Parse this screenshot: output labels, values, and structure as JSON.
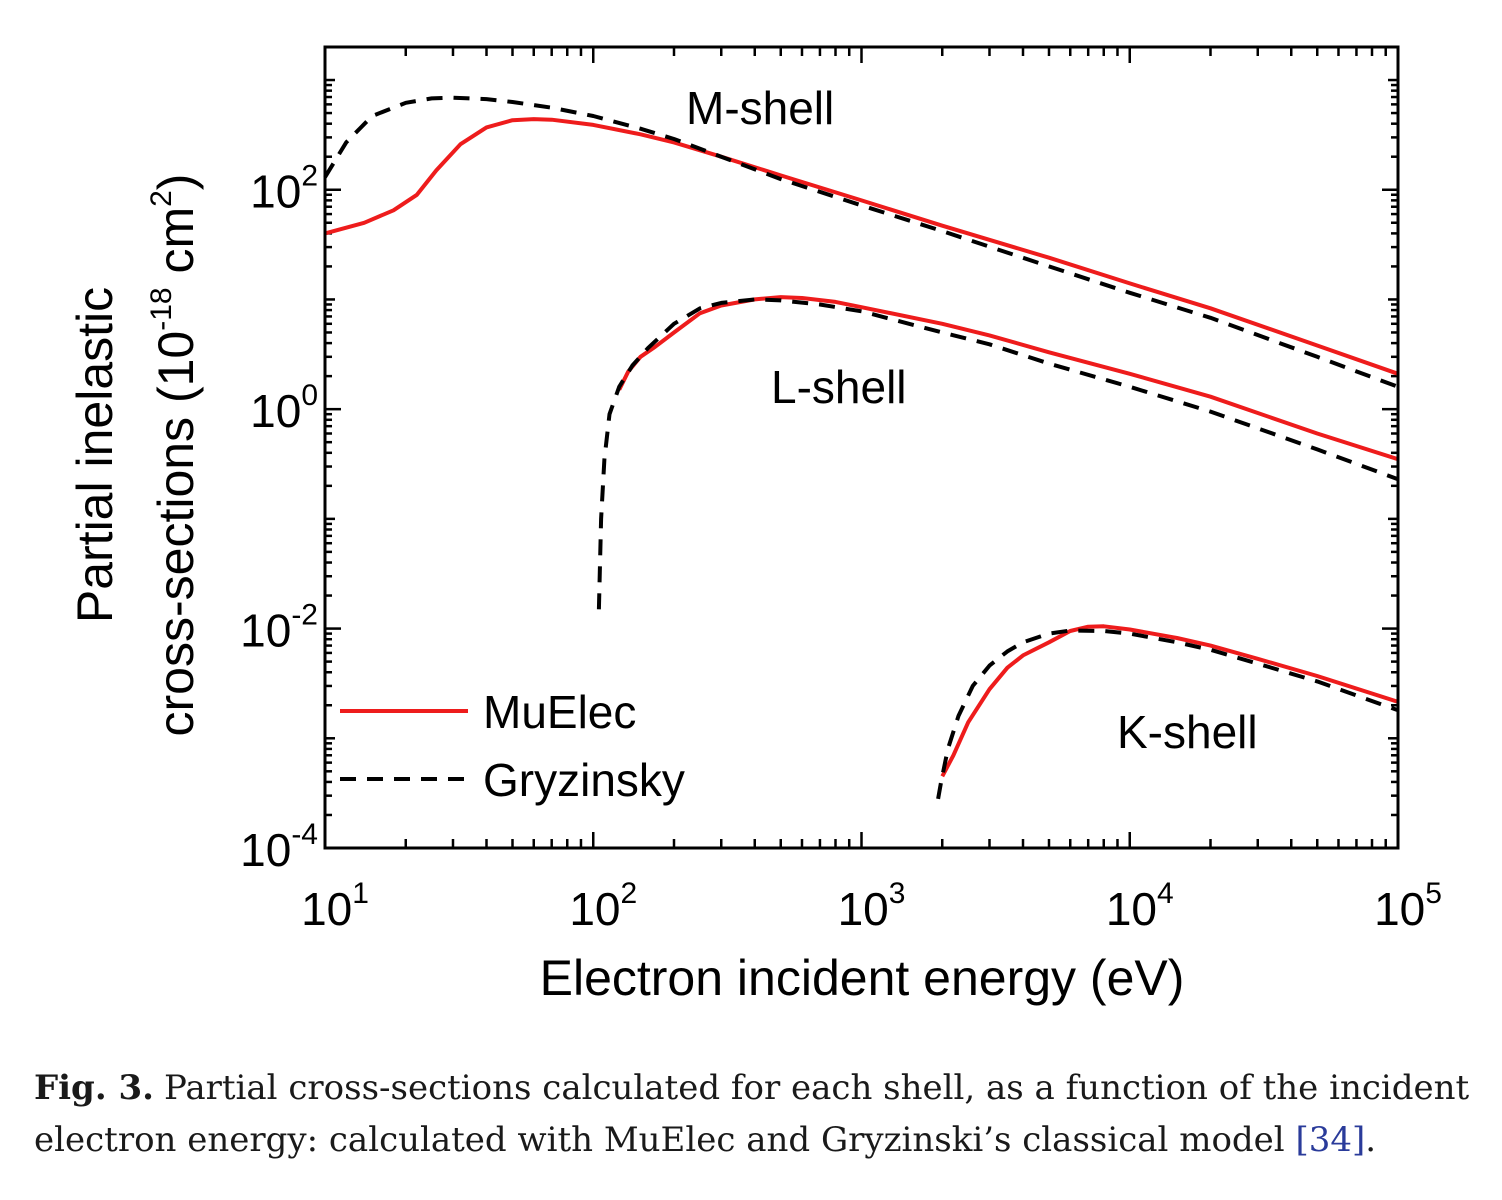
{
  "chart_data": {
    "type": "line",
    "xlabel": "Electron incident energy (eV)",
    "ylabel_line1": "Partial inelastic",
    "ylabel_line2": "cross-sections (10",
    "ylabel_exp": "-18",
    "ylabel_unit": " cm",
    "ylabel_unit_exp": "2",
    "ylabel_close": ")",
    "xscale": "log",
    "yscale": "log",
    "xlim": [
      10,
      100000
    ],
    "ylim": [
      0.0001,
      2000
    ],
    "x_ticks": [
      {
        "base": "10",
        "exp": "1"
      },
      {
        "base": "10",
        "exp": "2"
      },
      {
        "base": "10",
        "exp": "3"
      },
      {
        "base": "10",
        "exp": "4"
      },
      {
        "base": "10",
        "exp": "5"
      }
    ],
    "y_ticks": [
      {
        "base": "10",
        "exp": "-4"
      },
      {
        "base": "10",
        "exp": "-2"
      },
      {
        "base": "10",
        "exp": "0"
      },
      {
        "base": "10",
        "exp": "2"
      }
    ],
    "legend": {
      "position": "bottom-left",
      "entries": [
        "MuElec",
        "Gryzinsky"
      ]
    },
    "annotations": [
      "M-shell",
      "L-shell",
      "K-shell"
    ],
    "colors": {
      "MuElec": "#ee1c1c",
      "Gryzinsky": "#000000"
    },
    "series": [
      {
        "name": "MuElec",
        "shell": "M-shell",
        "style": "solid",
        "points": [
          [
            10,
            40
          ],
          [
            14,
            50
          ],
          [
            18,
            65
          ],
          [
            22,
            90
          ],
          [
            26,
            150
          ],
          [
            32,
            260
          ],
          [
            40,
            370
          ],
          [
            50,
            430
          ],
          [
            60,
            440
          ],
          [
            70,
            435
          ],
          [
            100,
            390
          ],
          [
            150,
            320
          ],
          [
            200,
            270
          ],
          [
            300,
            200
          ],
          [
            500,
            135
          ],
          [
            1000,
            80
          ],
          [
            2000,
            47
          ],
          [
            5000,
            24
          ],
          [
            10000,
            14
          ],
          [
            20000,
            8.3
          ],
          [
            50000,
            3.8
          ],
          [
            100000,
            2.1
          ]
        ]
      },
      {
        "name": "Gryzinsky",
        "shell": "M-shell",
        "style": "dashed",
        "points": [
          [
            10,
            130
          ],
          [
            12,
            270
          ],
          [
            15,
            470
          ],
          [
            20,
            620
          ],
          [
            25,
            680
          ],
          [
            30,
            690
          ],
          [
            40,
            670
          ],
          [
            50,
            630
          ],
          [
            70,
            560
          ],
          [
            100,
            470
          ],
          [
            150,
            360
          ],
          [
            200,
            290
          ],
          [
            300,
            200
          ],
          [
            500,
            125
          ],
          [
            1000,
            72
          ],
          [
            2000,
            42
          ],
          [
            5000,
            20
          ],
          [
            10000,
            11.5
          ],
          [
            20000,
            6.8
          ],
          [
            50000,
            3
          ],
          [
            100000,
            1.6
          ]
        ]
      },
      {
        "name": "MuElec",
        "shell": "L-shell",
        "style": "solid",
        "points": [
          [
            125,
            1.5
          ],
          [
            135,
            2.2
          ],
          [
            150,
            3
          ],
          [
            170,
            3.7
          ],
          [
            200,
            5
          ],
          [
            250,
            7.5
          ],
          [
            300,
            8.8
          ],
          [
            400,
            10
          ],
          [
            500,
            10.5
          ],
          [
            600,
            10.3
          ],
          [
            800,
            9.5
          ],
          [
            1000,
            8.5
          ],
          [
            2000,
            6
          ],
          [
            3000,
            4.7
          ],
          [
            5000,
            3.3
          ],
          [
            10000,
            2.1
          ],
          [
            20000,
            1.3
          ],
          [
            50000,
            0.6
          ],
          [
            100000,
            0.35
          ]
        ]
      },
      {
        "name": "Gryzinsky",
        "shell": "L-shell",
        "style": "dashed",
        "points": [
          [
            105,
            0.015
          ],
          [
            107,
            0.1
          ],
          [
            110,
            0.35
          ],
          [
            115,
            0.9
          ],
          [
            125,
            1.6
          ],
          [
            140,
            2.5
          ],
          [
            160,
            3.6
          ],
          [
            200,
            6
          ],
          [
            250,
            8.3
          ],
          [
            300,
            9.3
          ],
          [
            400,
            10
          ],
          [
            500,
            9.8
          ],
          [
            700,
            9
          ],
          [
            1000,
            7.8
          ],
          [
            2000,
            5
          ],
          [
            3000,
            3.9
          ],
          [
            5000,
            2.6
          ],
          [
            10000,
            1.6
          ],
          [
            20000,
            0.95
          ],
          [
            50000,
            0.43
          ],
          [
            100000,
            0.23
          ]
        ]
      },
      {
        "name": "MuElec",
        "shell": "K-shell",
        "style": "solid",
        "points": [
          [
            2000,
            0.00045
          ],
          [
            2200,
            0.0007
          ],
          [
            2500,
            0.0014
          ],
          [
            3000,
            0.0028
          ],
          [
            3500,
            0.0044
          ],
          [
            4000,
            0.0057
          ],
          [
            5000,
            0.0075
          ],
          [
            6000,
            0.0095
          ],
          [
            7000,
            0.0104
          ],
          [
            8000,
            0.0105
          ],
          [
            10000,
            0.0098
          ],
          [
            15000,
            0.0082
          ],
          [
            20000,
            0.007
          ],
          [
            30000,
            0.0053
          ],
          [
            50000,
            0.0037
          ],
          [
            100000,
            0.00215
          ]
        ]
      },
      {
        "name": "Gryzinsky",
        "shell": "K-shell",
        "style": "dashed",
        "points": [
          [
            1930,
            0.00028
          ],
          [
            1980,
            0.0004
          ],
          [
            2100,
            0.0008
          ],
          [
            2300,
            0.0016
          ],
          [
            2600,
            0.003
          ],
          [
            3000,
            0.0046
          ],
          [
            3500,
            0.0062
          ],
          [
            4000,
            0.0075
          ],
          [
            5000,
            0.009
          ],
          [
            6000,
            0.0096
          ],
          [
            8000,
            0.0095
          ],
          [
            10000,
            0.009
          ],
          [
            15000,
            0.0075
          ],
          [
            20000,
            0.0064
          ],
          [
            30000,
            0.0048
          ],
          [
            50000,
            0.0033
          ],
          [
            100000,
            0.0018
          ]
        ]
      }
    ]
  },
  "caption": {
    "label": "Fig. 3.",
    "text": "Partial cross-sections calculated for each shell, as a function of the incident electron energy: calculated with MuElec and Gryzinski’s classical model",
    "ref": "[34]",
    "end": "."
  }
}
